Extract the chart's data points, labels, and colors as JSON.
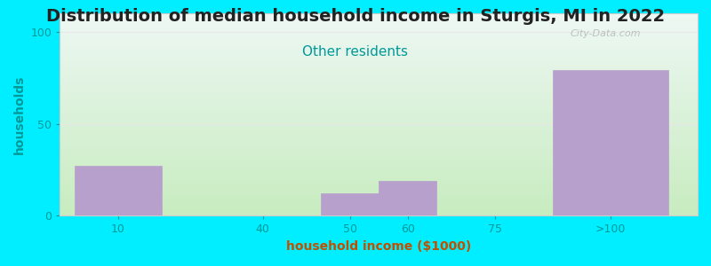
{
  "title": "Distribution of median household income in Sturgis, MI in 2022",
  "subtitle": "Other residents",
  "xlabel": "household income ($1000)",
  "ylabel": "households",
  "bar_color": "#b8a0cc",
  "background_outer": "#00eeff",
  "watermark": "City-Data.com",
  "values": [
    27,
    0,
    12,
    19,
    0,
    79
  ],
  "bar_positions": [
    1.0,
    3.5,
    5.0,
    6.0,
    7.5,
    9.5
  ],
  "bar_widths": [
    1.5,
    0,
    1.0,
    1.0,
    0,
    2.0
  ],
  "xlim": [
    0,
    11
  ],
  "ylim": [
    0,
    110
  ],
  "yticks": [
    0,
    50,
    100
  ],
  "xtick_positions": [
    1.0,
    3.5,
    5.0,
    6.0,
    7.5,
    9.5
  ],
  "xtick_labels": [
    "10",
    "40",
    "50",
    "60",
    "75",
    ">100"
  ],
  "title_fontsize": 14,
  "subtitle_fontsize": 11,
  "axis_label_fontsize": 10,
  "tick_fontsize": 9,
  "plot_bg_top": "#eef8f4",
  "plot_bg_bottom": "#c8ecc0",
  "title_color": "#222222",
  "subtitle_color": "#009999",
  "ylabel_color": "#009999",
  "xlabel_color": "#c05000",
  "tick_color": "#009999",
  "watermark_color": "#aaaaaa",
  "grid_color": "#e8e8e8"
}
